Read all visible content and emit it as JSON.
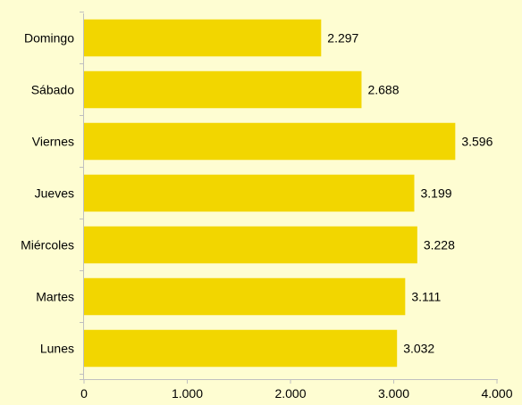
{
  "chart_data": {
    "type": "bar",
    "orientation": "horizontal",
    "categories": [
      "Domingo",
      "Sábado",
      "Viernes",
      "Jueves",
      "Miércoles",
      "Martes",
      "Lunes"
    ],
    "values": [
      2297,
      2688,
      3596,
      3199,
      3228,
      3111,
      3032
    ],
    "value_labels": [
      "2.297",
      "2.688",
      "3.596",
      "3.199",
      "3.228",
      "3.111",
      "3.032"
    ],
    "x_ticks": [
      0,
      1000,
      2000,
      3000,
      4000
    ],
    "x_tick_labels": [
      "0",
      "1.000",
      "2.000",
      "3.000",
      "4.000"
    ],
    "xlim": [
      0,
      4000
    ],
    "title": "",
    "xlabel": "",
    "ylabel": "",
    "grid": false,
    "colors": {
      "bar": "#f2d600",
      "background": "#fefdd2",
      "axis": "#c0c0c0"
    }
  }
}
